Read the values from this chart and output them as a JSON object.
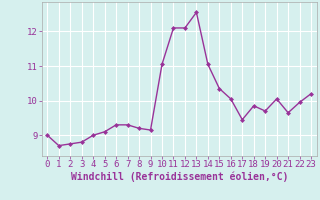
{
  "x": [
    0,
    1,
    2,
    3,
    4,
    5,
    6,
    7,
    8,
    9,
    10,
    11,
    12,
    13,
    14,
    15,
    16,
    17,
    18,
    19,
    20,
    21,
    22,
    23
  ],
  "y": [
    9.0,
    8.7,
    8.75,
    8.8,
    9.0,
    9.1,
    9.3,
    9.3,
    9.2,
    9.15,
    11.05,
    12.1,
    12.1,
    12.55,
    11.05,
    10.35,
    10.05,
    9.45,
    9.85,
    9.7,
    10.05,
    9.65,
    9.95,
    10.2
  ],
  "line_color": "#993399",
  "marker": "D",
  "marker_size": 2.0,
  "linewidth": 1.0,
  "xlabel": "Windchill (Refroidissement éolien,°C)",
  "xlabel_fontsize": 7,
  "xticks": [
    0,
    1,
    2,
    3,
    4,
    5,
    6,
    7,
    8,
    9,
    10,
    11,
    12,
    13,
    14,
    15,
    16,
    17,
    18,
    19,
    20,
    21,
    22,
    23
  ],
  "yticks": [
    9,
    10,
    11,
    12
  ],
  "ylim": [
    8.4,
    12.85
  ],
  "xlim": [
    -0.5,
    23.5
  ],
  "background_color": "#d6f0ee",
  "grid_color": "#ffffff",
  "tick_fontsize": 6.5,
  "ylabel_color": "#993399",
  "spine_color": "#aaaaaa"
}
